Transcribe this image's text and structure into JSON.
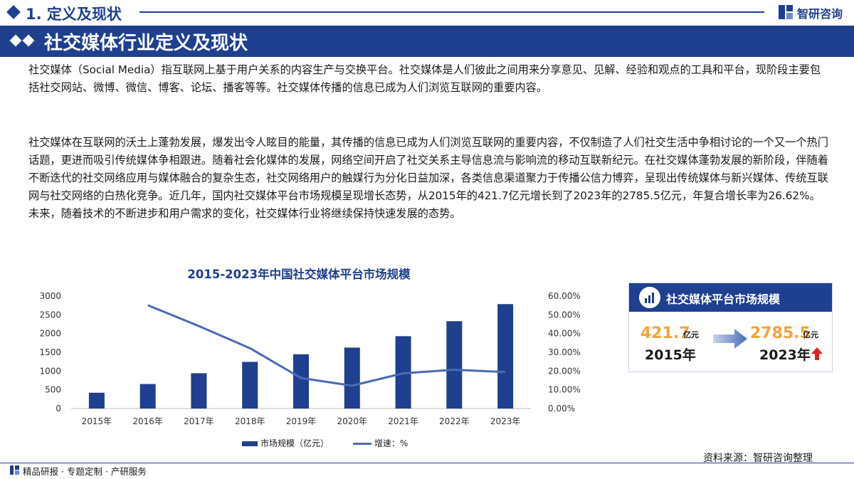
{
  "header": {
    "section_label": "1. 定义及现状",
    "brand": "智研咨询",
    "banner_title": "社交媒体行业定义及现状"
  },
  "body": {
    "paragraph1": "社交媒体（Social Media）指互联网上基于用户关系的内容生产与交换平台。社交媒体是人们彼此之间用来分享意见、见解、经验和观点的工具和平台，现阶段主要包括社交网站、微博、微信、博客、论坛、播客等等。社交媒体传播的信息已成为人们浏览互联网的重要内容。",
    "paragraph2": "社交媒体在互联网的沃土上蓬勃发展，爆发出令人眩目的能量，其传播的信息已成为人们浏览互联网的重要内容，不仅制造了人们社交生活中争相讨论的一个又一个热门话题，更进而吸引传统媒体争相跟进。随着社会化媒体的发展，网络空间开启了社交关系主导信息流与影响流的移动互联新纪元。在社交媒体蓬勃发展的新阶段，伴随着不断迭代的社交网络应用与媒体融合的复杂生态，社交网络用户的触媒行为分化日益加深，各类信息渠道聚力于传播公信力博弈，呈现出传统媒体与新兴媒体、传统互联网与社交网络的白热化竞争。近几年，国内社交媒体平台市场规模呈现增长态势，从2015年的421.7亿元增长到了2023年的2785.5亿元，年复合增长率为26.62%。未来，随着技术的不断进步和用户需求的变化，社交媒体行业将继续保持快速发展的态势。"
  },
  "chart_data": {
    "type": "bar",
    "title": "2015-2023年中国社交媒体平台市场规模",
    "categories": [
      "2015年",
      "2016年",
      "2017年",
      "2018年",
      "2019年",
      "2020年",
      "2021年",
      "2022年",
      "2023年"
    ],
    "series": [
      {
        "name": "市场规模（亿元）",
        "type": "bar",
        "axis": "left",
        "values": [
          421.7,
          654,
          942,
          1245,
          1448,
          1625,
          1930,
          2330,
          2785.5
        ]
      },
      {
        "name": "增速：%",
        "type": "line",
        "axis": "right",
        "values": [
          null,
          55.1,
          44.0,
          32.2,
          16.3,
          12.2,
          18.8,
          20.7,
          19.5
        ]
      }
    ],
    "yticks_left": [
      "0",
      "500",
      "1000",
      "1500",
      "2000",
      "2500",
      "3000"
    ],
    "yticks_right": [
      "0.00%",
      "10.00%",
      "20.00%",
      "30.00%",
      "40.00%",
      "50.00%",
      "60.00%"
    ],
    "ylim_left": [
      0,
      3000
    ],
    "ylim_right": [
      0,
      60
    ],
    "grid": false,
    "legend_position": "bottom",
    "colors": {
      "bar": "#1f3f8f",
      "line": "#4a6bb5"
    }
  },
  "card": {
    "title": "社交媒体平台市场规模",
    "value_start": "421.7",
    "unit_start": "亿元",
    "year_start": "2015年",
    "value_end": "2785.5",
    "unit_end": "亿元",
    "year_end": "2023年"
  },
  "legend": {
    "bar_label": "市场规模（亿元）",
    "line_label": "增速：%"
  },
  "footer": {
    "source": "资料来源：智研咨询整理",
    "tagline": "精品研报 · 专题定制 · 产研服务"
  },
  "colors": {
    "primary": "#1f3f8f",
    "accent_orange": "#f2a33a",
    "up_arrow": "#d9261c"
  }
}
